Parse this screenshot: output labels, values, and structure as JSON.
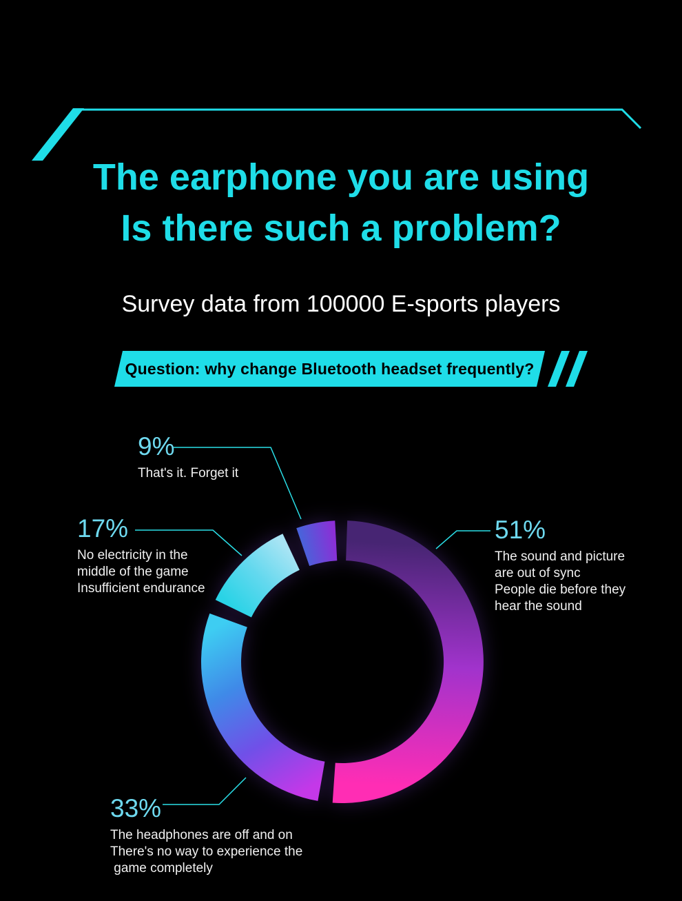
{
  "colors": {
    "background": "#000000",
    "accent_cyan": "#1fdde8",
    "percent_label": "#6ed9ef",
    "description_text": "#f0f0f0",
    "banner_text": "#000000"
  },
  "header": {
    "title_line1": "The earphone you are using",
    "title_line2": "Is there such a problem?",
    "subtitle": "Survey data from 100000 E-sports players"
  },
  "banner": {
    "text": "Question: why change Bluetooth headset frequently?"
  },
  "chart_data": {
    "type": "pie",
    "style": "donut",
    "title": "Question: why change Bluetooth headset frequently?",
    "unit": "percent",
    "legend_position": "callouts-around-donut",
    "series": [
      {
        "label": "51%",
        "value": 51,
        "desc_lines": [
          "The sound and picture",
          "are out of sync",
          "People die before they",
          "hear the sound"
        ],
        "arc_deg": [
          2,
          184
        ],
        "gradient": [
          "#472573",
          "#a133cc",
          "#ff2db4"
        ]
      },
      {
        "label": "33%",
        "value": 33,
        "desc_lines": [
          "The headphones are off and on",
          "There's no way to experience the",
          " game completely"
        ],
        "arc_deg": [
          190,
          290
        ],
        "gradient": [
          "#c438e8",
          "#7050e8",
          "#3f8ae8",
          "#3ecdf2"
        ]
      },
      {
        "label": "17%",
        "value": 17,
        "desc_lines": [
          "No electricity in the",
          "middle of the game",
          "Insufficient endurance"
        ],
        "arc_deg": [
          296,
          335
        ],
        "gradient": [
          "#29d3e6",
          "#62d8ee",
          "#a8e4f4"
        ]
      },
      {
        "label": "9%",
        "value": 9,
        "desc_lines": [
          "That's it. Forget it"
        ],
        "arc_deg": [
          341,
          357
        ],
        "gradient": [
          "#4a62da",
          "#8c2ed6"
        ]
      }
    ]
  }
}
